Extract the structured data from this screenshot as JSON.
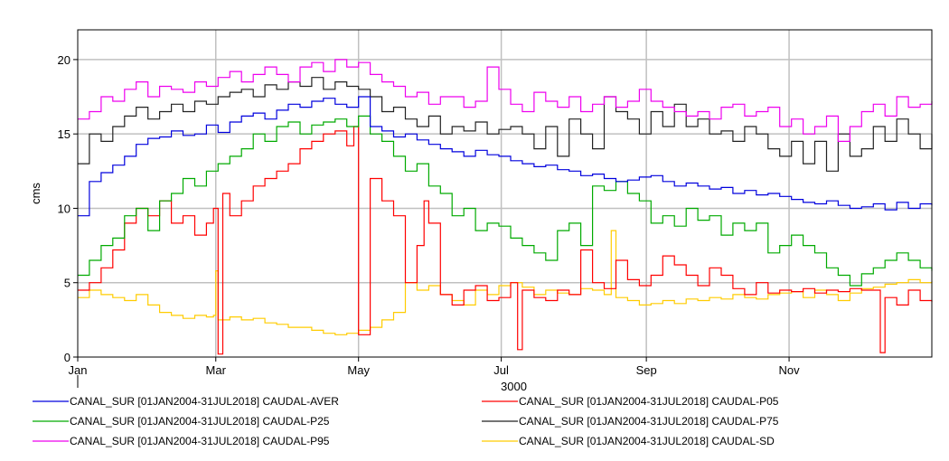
{
  "chart_data": {
    "type": "line",
    "title": "",
    "xlabel": "3000",
    "ylabel": "cms",
    "ylim": [
      0,
      22
    ],
    "xlim": [
      0,
      365
    ],
    "yticks": [
      0,
      5,
      10,
      15,
      20
    ],
    "xticks": [
      {
        "label": "Jan",
        "day": 0
      },
      {
        "label": "Mar",
        "day": 59
      },
      {
        "label": "May",
        "day": 120
      },
      {
        "label": "Jul",
        "day": 181
      },
      {
        "label": "Sep",
        "day": 243
      },
      {
        "label": "Nov",
        "day": 304
      }
    ],
    "grid": true,
    "legend_position": "bottom",
    "series": [
      {
        "name": "CANAL_SUR [01JAN2004-31JUL2018] CAUDAL-AVER",
        "color": "#0000dd",
        "x": [
          0,
          5,
          10,
          15,
          20,
          25,
          30,
          35,
          40,
          45,
          50,
          55,
          60,
          65,
          70,
          75,
          80,
          85,
          90,
          95,
          100,
          105,
          110,
          115,
          120,
          125,
          130,
          135,
          140,
          145,
          150,
          155,
          160,
          165,
          170,
          175,
          180,
          185,
          190,
          195,
          200,
          205,
          210,
          215,
          220,
          225,
          230,
          235,
          240,
          245,
          250,
          255,
          260,
          265,
          270,
          275,
          280,
          285,
          290,
          295,
          300,
          305,
          310,
          315,
          320,
          325,
          330,
          335,
          340,
          345,
          350,
          355,
          360,
          365
        ],
        "y": [
          9.5,
          11.8,
          12.4,
          12.9,
          13.5,
          14.3,
          14.7,
          14.8,
          15.2,
          14.9,
          15.0,
          15.6,
          15.1,
          15.8,
          16.2,
          16.4,
          16.0,
          16.6,
          17.0,
          16.8,
          17.2,
          17.4,
          17.0,
          16.8,
          17.5,
          15.5,
          15.2,
          14.8,
          15.0,
          14.6,
          14.3,
          14.0,
          13.8,
          13.5,
          13.9,
          13.6,
          13.5,
          13.2,
          13.0,
          12.8,
          12.9,
          12.6,
          12.5,
          12.2,
          12.3,
          12.0,
          11.8,
          11.9,
          12.1,
          12.2,
          11.8,
          11.5,
          11.7,
          11.5,
          11.3,
          11.4,
          11.0,
          11.2,
          10.9,
          11.0,
          10.8,
          10.6,
          10.4,
          10.3,
          10.5,
          10.2,
          10.0,
          10.1,
          10.3,
          9.9,
          10.4,
          10.0,
          10.3,
          10.2
        ]
      },
      {
        "name": "CANAL_SUR [01JAN2004-31JUL2018] CAUDAL-P05",
        "color": "#ff0000",
        "x": [
          0,
          5,
          10,
          15,
          20,
          25,
          30,
          35,
          40,
          45,
          50,
          55,
          58,
          60,
          62,
          65,
          70,
          75,
          80,
          85,
          90,
          95,
          100,
          105,
          110,
          115,
          118,
          120,
          125,
          130,
          135,
          140,
          145,
          148,
          150,
          155,
          160,
          165,
          170,
          175,
          180,
          185,
          188,
          190,
          195,
          200,
          205,
          210,
          215,
          220,
          225,
          230,
          235,
          240,
          245,
          250,
          255,
          260,
          265,
          270,
          275,
          280,
          285,
          290,
          295,
          300,
          305,
          310,
          315,
          320,
          325,
          330,
          335,
          340,
          343,
          345,
          350,
          355,
          360,
          365
        ],
        "y": [
          4.5,
          5.0,
          6.0,
          7.2,
          9.0,
          10.0,
          9.5,
          10.5,
          9.0,
          9.5,
          8.2,
          9.0,
          10.0,
          0.2,
          11.0,
          9.5,
          10.5,
          11.5,
          12.0,
          12.5,
          13.0,
          14.0,
          14.5,
          15.0,
          15.2,
          14.2,
          15.5,
          1.5,
          12.0,
          10.5,
          9.5,
          5.0,
          7.5,
          10.5,
          9.0,
          4.2,
          3.5,
          4.5,
          4.8,
          3.8,
          4.0,
          5.0,
          0.5,
          4.5,
          4.0,
          3.8,
          4.5,
          4.2,
          7.2,
          5.0,
          4.6,
          6.5,
          5.2,
          4.8,
          5.5,
          6.8,
          6.2,
          5.5,
          4.8,
          6.0,
          5.5,
          4.6,
          4.2,
          5.0,
          4.3,
          4.5,
          4.4,
          4.6,
          4.3,
          4.5,
          4.4,
          4.6,
          4.5,
          4.5,
          0.3,
          4.0,
          3.5,
          4.5,
          3.8,
          3.7
        ]
      },
      {
        "name": "CANAL_SUR [01JAN2004-31JUL2018] CAUDAL-P25",
        "color": "#00aa00",
        "x": [
          0,
          5,
          10,
          15,
          20,
          25,
          30,
          35,
          40,
          45,
          50,
          55,
          60,
          65,
          70,
          75,
          80,
          85,
          90,
          95,
          100,
          105,
          110,
          115,
          120,
          125,
          130,
          135,
          140,
          145,
          150,
          155,
          160,
          165,
          170,
          175,
          180,
          185,
          190,
          195,
          200,
          205,
          210,
          215,
          220,
          225,
          230,
          235,
          240,
          245,
          250,
          255,
          260,
          265,
          270,
          275,
          280,
          285,
          290,
          295,
          300,
          305,
          310,
          315,
          320,
          325,
          330,
          335,
          340,
          345,
          350,
          355,
          360,
          365
        ],
        "y": [
          5.5,
          6.5,
          7.5,
          8.0,
          9.5,
          10.0,
          8.5,
          10.5,
          11.0,
          12.0,
          11.5,
          12.5,
          13.0,
          13.5,
          14.0,
          15.0,
          14.5,
          15.5,
          15.8,
          15.0,
          15.6,
          15.8,
          16.0,
          15.5,
          16.2,
          15.0,
          14.5,
          13.5,
          12.5,
          13.0,
          11.5,
          11.0,
          9.5,
          10.0,
          8.5,
          9.0,
          8.8,
          8.0,
          7.5,
          7.0,
          6.5,
          8.5,
          9.0,
          7.5,
          11.5,
          11.2,
          11.8,
          11.0,
          10.5,
          9.0,
          9.5,
          8.8,
          10.0,
          9.2,
          9.5,
          8.2,
          9.0,
          8.5,
          9.0,
          7.0,
          7.5,
          8.2,
          7.5,
          7.0,
          6.0,
          5.5,
          4.8,
          5.6,
          6.0,
          6.5,
          7.0,
          6.5,
          6.0,
          5.8
        ]
      },
      {
        "name": "CANAL_SUR [01JAN2004-31JUL2018] CAUDAL-P75",
        "color": "#222222",
        "x": [
          0,
          5,
          10,
          15,
          20,
          25,
          30,
          35,
          40,
          45,
          50,
          55,
          60,
          65,
          70,
          75,
          80,
          85,
          90,
          95,
          100,
          105,
          110,
          115,
          120,
          125,
          130,
          135,
          140,
          145,
          150,
          155,
          160,
          165,
          170,
          175,
          180,
          185,
          190,
          195,
          200,
          205,
          210,
          215,
          220,
          225,
          230,
          235,
          240,
          245,
          250,
          255,
          260,
          265,
          270,
          275,
          280,
          285,
          290,
          295,
          300,
          305,
          310,
          315,
          320,
          325,
          330,
          335,
          340,
          345,
          350,
          355,
          360,
          365
        ],
        "y": [
          13.0,
          15.0,
          14.5,
          15.5,
          16.2,
          16.8,
          16.0,
          16.5,
          17.0,
          16.5,
          17.2,
          17.0,
          17.5,
          17.8,
          18.0,
          17.5,
          18.3,
          18.0,
          18.5,
          18.2,
          18.8,
          18.0,
          18.5,
          18.2,
          18.0,
          17.5,
          16.5,
          16.8,
          16.0,
          15.5,
          16.2,
          15.0,
          15.5,
          15.2,
          15.8,
          15.0,
          15.3,
          15.5,
          15.0,
          14.0,
          15.5,
          13.5,
          16.0,
          15.0,
          14.0,
          17.5,
          16.5,
          16.0,
          15.0,
          16.5,
          15.5,
          17.0,
          15.5,
          16.0,
          15.0,
          15.2,
          14.5,
          15.5,
          15.0,
          14.0,
          13.5,
          14.5,
          13.0,
          14.5,
          12.5,
          15.0,
          13.5,
          14.0,
          15.5,
          14.5,
          16.0,
          15.0,
          14.0,
          15.0
        ]
      },
      {
        "name": "CANAL_SUR [01JAN2004-31JUL2018] CAUDAL-P95",
        "color": "#ee00ee",
        "x": [
          0,
          5,
          10,
          15,
          20,
          25,
          30,
          35,
          40,
          45,
          50,
          55,
          60,
          65,
          70,
          75,
          80,
          85,
          90,
          95,
          100,
          105,
          110,
          115,
          120,
          125,
          130,
          135,
          140,
          145,
          150,
          155,
          160,
          165,
          170,
          175,
          180,
          185,
          190,
          195,
          200,
          205,
          210,
          215,
          220,
          225,
          230,
          235,
          240,
          245,
          250,
          255,
          260,
          265,
          270,
          275,
          280,
          285,
          290,
          295,
          300,
          305,
          310,
          315,
          320,
          325,
          330,
          335,
          340,
          345,
          350,
          355,
          360,
          365
        ],
        "y": [
          16.0,
          16.5,
          17.5,
          17.2,
          18.0,
          18.5,
          17.5,
          18.2,
          18.0,
          17.8,
          18.5,
          18.2,
          18.8,
          19.2,
          18.5,
          19.0,
          19.5,
          19.0,
          18.5,
          19.5,
          19.8,
          19.2,
          20.0,
          19.5,
          19.8,
          19.0,
          18.5,
          18.2,
          17.5,
          17.8,
          17.0,
          17.5,
          17.5,
          16.8,
          17.2,
          19.5,
          18.0,
          17.0,
          16.5,
          17.8,
          17.2,
          16.8,
          17.5,
          16.5,
          17.0,
          17.5,
          16.8,
          17.2,
          18.0,
          17.2,
          16.8,
          16.5,
          16.2,
          16.5,
          16.0,
          16.8,
          17.0,
          16.2,
          16.5,
          16.8,
          15.5,
          16.0,
          15.0,
          15.5,
          16.2,
          14.5,
          15.5,
          16.5,
          17.0,
          16.2,
          17.5,
          16.8,
          17.0,
          17.2
        ]
      },
      {
        "name": "CANAL_SUR [01JAN2004-31JUL2018] CAUDAL-SD",
        "color": "#ffcc00",
        "x": [
          0,
          5,
          10,
          15,
          20,
          25,
          30,
          35,
          40,
          45,
          50,
          55,
          58,
          59,
          60,
          65,
          70,
          75,
          80,
          85,
          90,
          95,
          100,
          105,
          110,
          115,
          120,
          125,
          130,
          135,
          140,
          145,
          150,
          155,
          160,
          165,
          170,
          175,
          180,
          185,
          190,
          195,
          200,
          205,
          210,
          215,
          220,
          225,
          228,
          230,
          235,
          240,
          245,
          250,
          255,
          260,
          265,
          270,
          275,
          280,
          285,
          290,
          295,
          300,
          305,
          310,
          315,
          320,
          325,
          330,
          335,
          340,
          345,
          350,
          355,
          360,
          365
        ],
        "y": [
          4.0,
          4.5,
          4.2,
          4.0,
          3.8,
          4.2,
          3.5,
          3.0,
          2.8,
          2.6,
          2.8,
          2.7,
          2.8,
          5.8,
          2.5,
          2.7,
          2.5,
          2.6,
          2.3,
          2.2,
          2.0,
          2.0,
          1.8,
          1.6,
          1.5,
          1.6,
          1.8,
          2.0,
          2.5,
          3.0,
          5.0,
          4.5,
          4.8,
          4.2,
          3.8,
          3.5,
          4.5,
          4.2,
          4.8,
          5.0,
          4.7,
          4.2,
          4.5,
          4.3,
          4.2,
          4.6,
          4.5,
          4.2,
          8.5,
          4.0,
          3.8,
          3.5,
          3.6,
          3.8,
          3.6,
          3.9,
          3.8,
          4.0,
          3.9,
          4.2,
          4.0,
          3.9,
          4.2,
          4.3,
          4.4,
          4.0,
          4.5,
          4.2,
          3.8,
          4.3,
          4.6,
          4.7,
          4.9,
          5.0,
          5.2,
          5.0,
          5.1
        ]
      }
    ]
  }
}
